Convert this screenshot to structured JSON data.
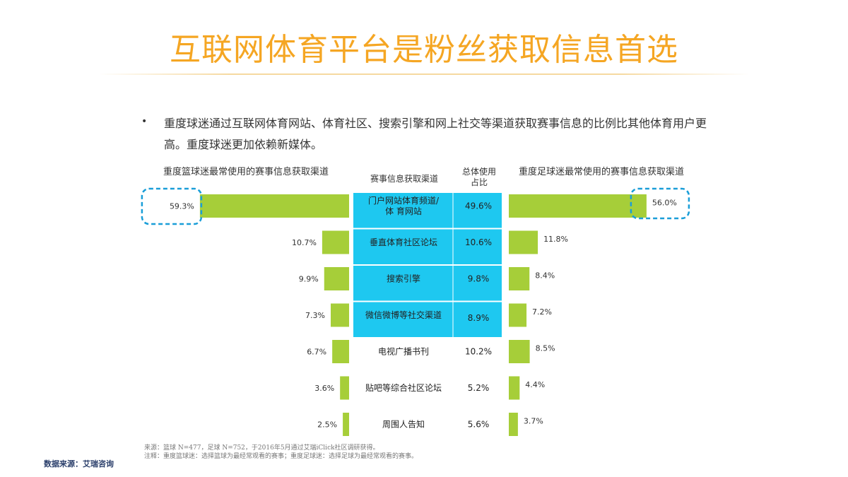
{
  "page": {
    "title": "互联网体育平台是粉丝获取信息首选",
    "bullet_marker": "•",
    "bullet": "重度球迷通过互联网体育网站、体育社区、搜索引擎和网上社交等渠道获取赛事信息的比例比其他体育用户更高。重度球迷更加依赖新媒体。",
    "footnote_source": "来源：篮球 N=477，足球 N=752，于2016年5月通过艾瑞iClick社区调研获得。",
    "footnote_note": "注释：重度篮球迷：选择篮球为最经常观看的赛事；重度足球迷：选择足球为最经常观看的赛事。",
    "data_source": "数据来源：艾瑞咨询"
  },
  "chart_data": {
    "type": "bar",
    "left_title": "重度篮球迷最常使用的赛事信息获取渠道",
    "center_header": "赛事信息获取渠道",
    "overall_header": "总体使用占比",
    "right_title": "重度足球迷最常使用的赛事信息获取渠道",
    "categories": [
      "门户网站体育频道/体育网站",
      "垂直体育社区论坛",
      "搜索引擎",
      "微信微博等社交渠道",
      "电视广播书刊",
      "贴吧等综合社区论坛",
      "周围人告知"
    ],
    "category_lines": [
      [
        "门户网站体育频道/",
        "体 育网站"
      ],
      [
        "垂直体育社区论坛"
      ],
      [
        "搜索引擎"
      ],
      [
        "微信微博等社交渠道"
      ],
      [
        "电视广播书刊"
      ],
      [
        "贴吧等综合社区论坛"
      ],
      [
        "周围人告知"
      ]
    ],
    "highlighted_rows": 4,
    "series": [
      {
        "name": "重度篮球迷",
        "values": [
          59.3,
          10.7,
          9.9,
          7.3,
          6.7,
          3.6,
          2.5
        ],
        "labels": [
          "59.3%",
          "10.7%",
          "9.9%",
          "7.3%",
          "6.7%",
          "3.6%",
          "2.5%"
        ]
      },
      {
        "name": "总体使用占比",
        "values": [
          49.6,
          10.6,
          9.8,
          8.9,
          10.2,
          5.2,
          5.6
        ],
        "labels": [
          "49.6%",
          "10.6%",
          "9.8%",
          "8.9%",
          "10.2%",
          "5.2%",
          "5.6%"
        ]
      },
      {
        "name": "重度足球迷",
        "values": [
          56.0,
          11.8,
          8.4,
          7.2,
          8.5,
          4.4,
          3.7
        ],
        "labels": [
          "56.0%",
          "11.8%",
          "8.4%",
          "7.2%",
          "8.5%",
          "4.4%",
          "3.7%"
        ]
      }
    ],
    "bar_color": "#a6ce39",
    "highlight_color": "#1ec8f0",
    "callout_color": "#1a9ed8"
  }
}
